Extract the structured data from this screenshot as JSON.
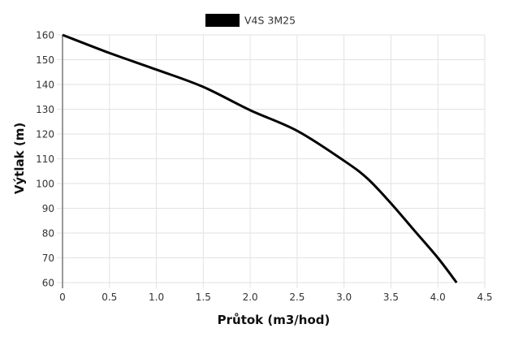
{
  "chart_data": {
    "type": "line",
    "title": "",
    "xlabel": "Průtok (m3/hod)",
    "ylabel": "Výtlak (m)",
    "xlim": [
      0,
      4.5
    ],
    "ylim": [
      60,
      160
    ],
    "x_ticks": [
      "0",
      "0.5",
      "1.0",
      "1.5",
      "2.0",
      "2.5",
      "3.0",
      "3.5",
      "4.0",
      "4.5"
    ],
    "y_ticks": [
      "60",
      "70",
      "80",
      "90",
      "100",
      "110",
      "120",
      "130",
      "140",
      "150",
      "160"
    ],
    "grid": true,
    "legend_position": "top-center",
    "series": [
      {
        "name": "V4S 3M25",
        "color": "#000000",
        "x": [
          0,
          0.5,
          1.0,
          1.5,
          2.0,
          2.5,
          3.0,
          3.25,
          3.5,
          3.75,
          4.0,
          4.2
        ],
        "y": [
          160,
          152.7,
          146,
          139,
          129.6,
          121.3,
          109.2,
          102,
          92,
          81,
          70,
          60
        ]
      }
    ]
  },
  "legend": {
    "label": "V4S 3M25",
    "swatch_color": "#000000"
  },
  "axes": {
    "x_title": "Průtok (m3/hod)",
    "y_title": "Výtlak (m)"
  },
  "colors": {
    "grid": "#e2e2e2",
    "axis": "#9a9a9a",
    "line": "#000000"
  }
}
